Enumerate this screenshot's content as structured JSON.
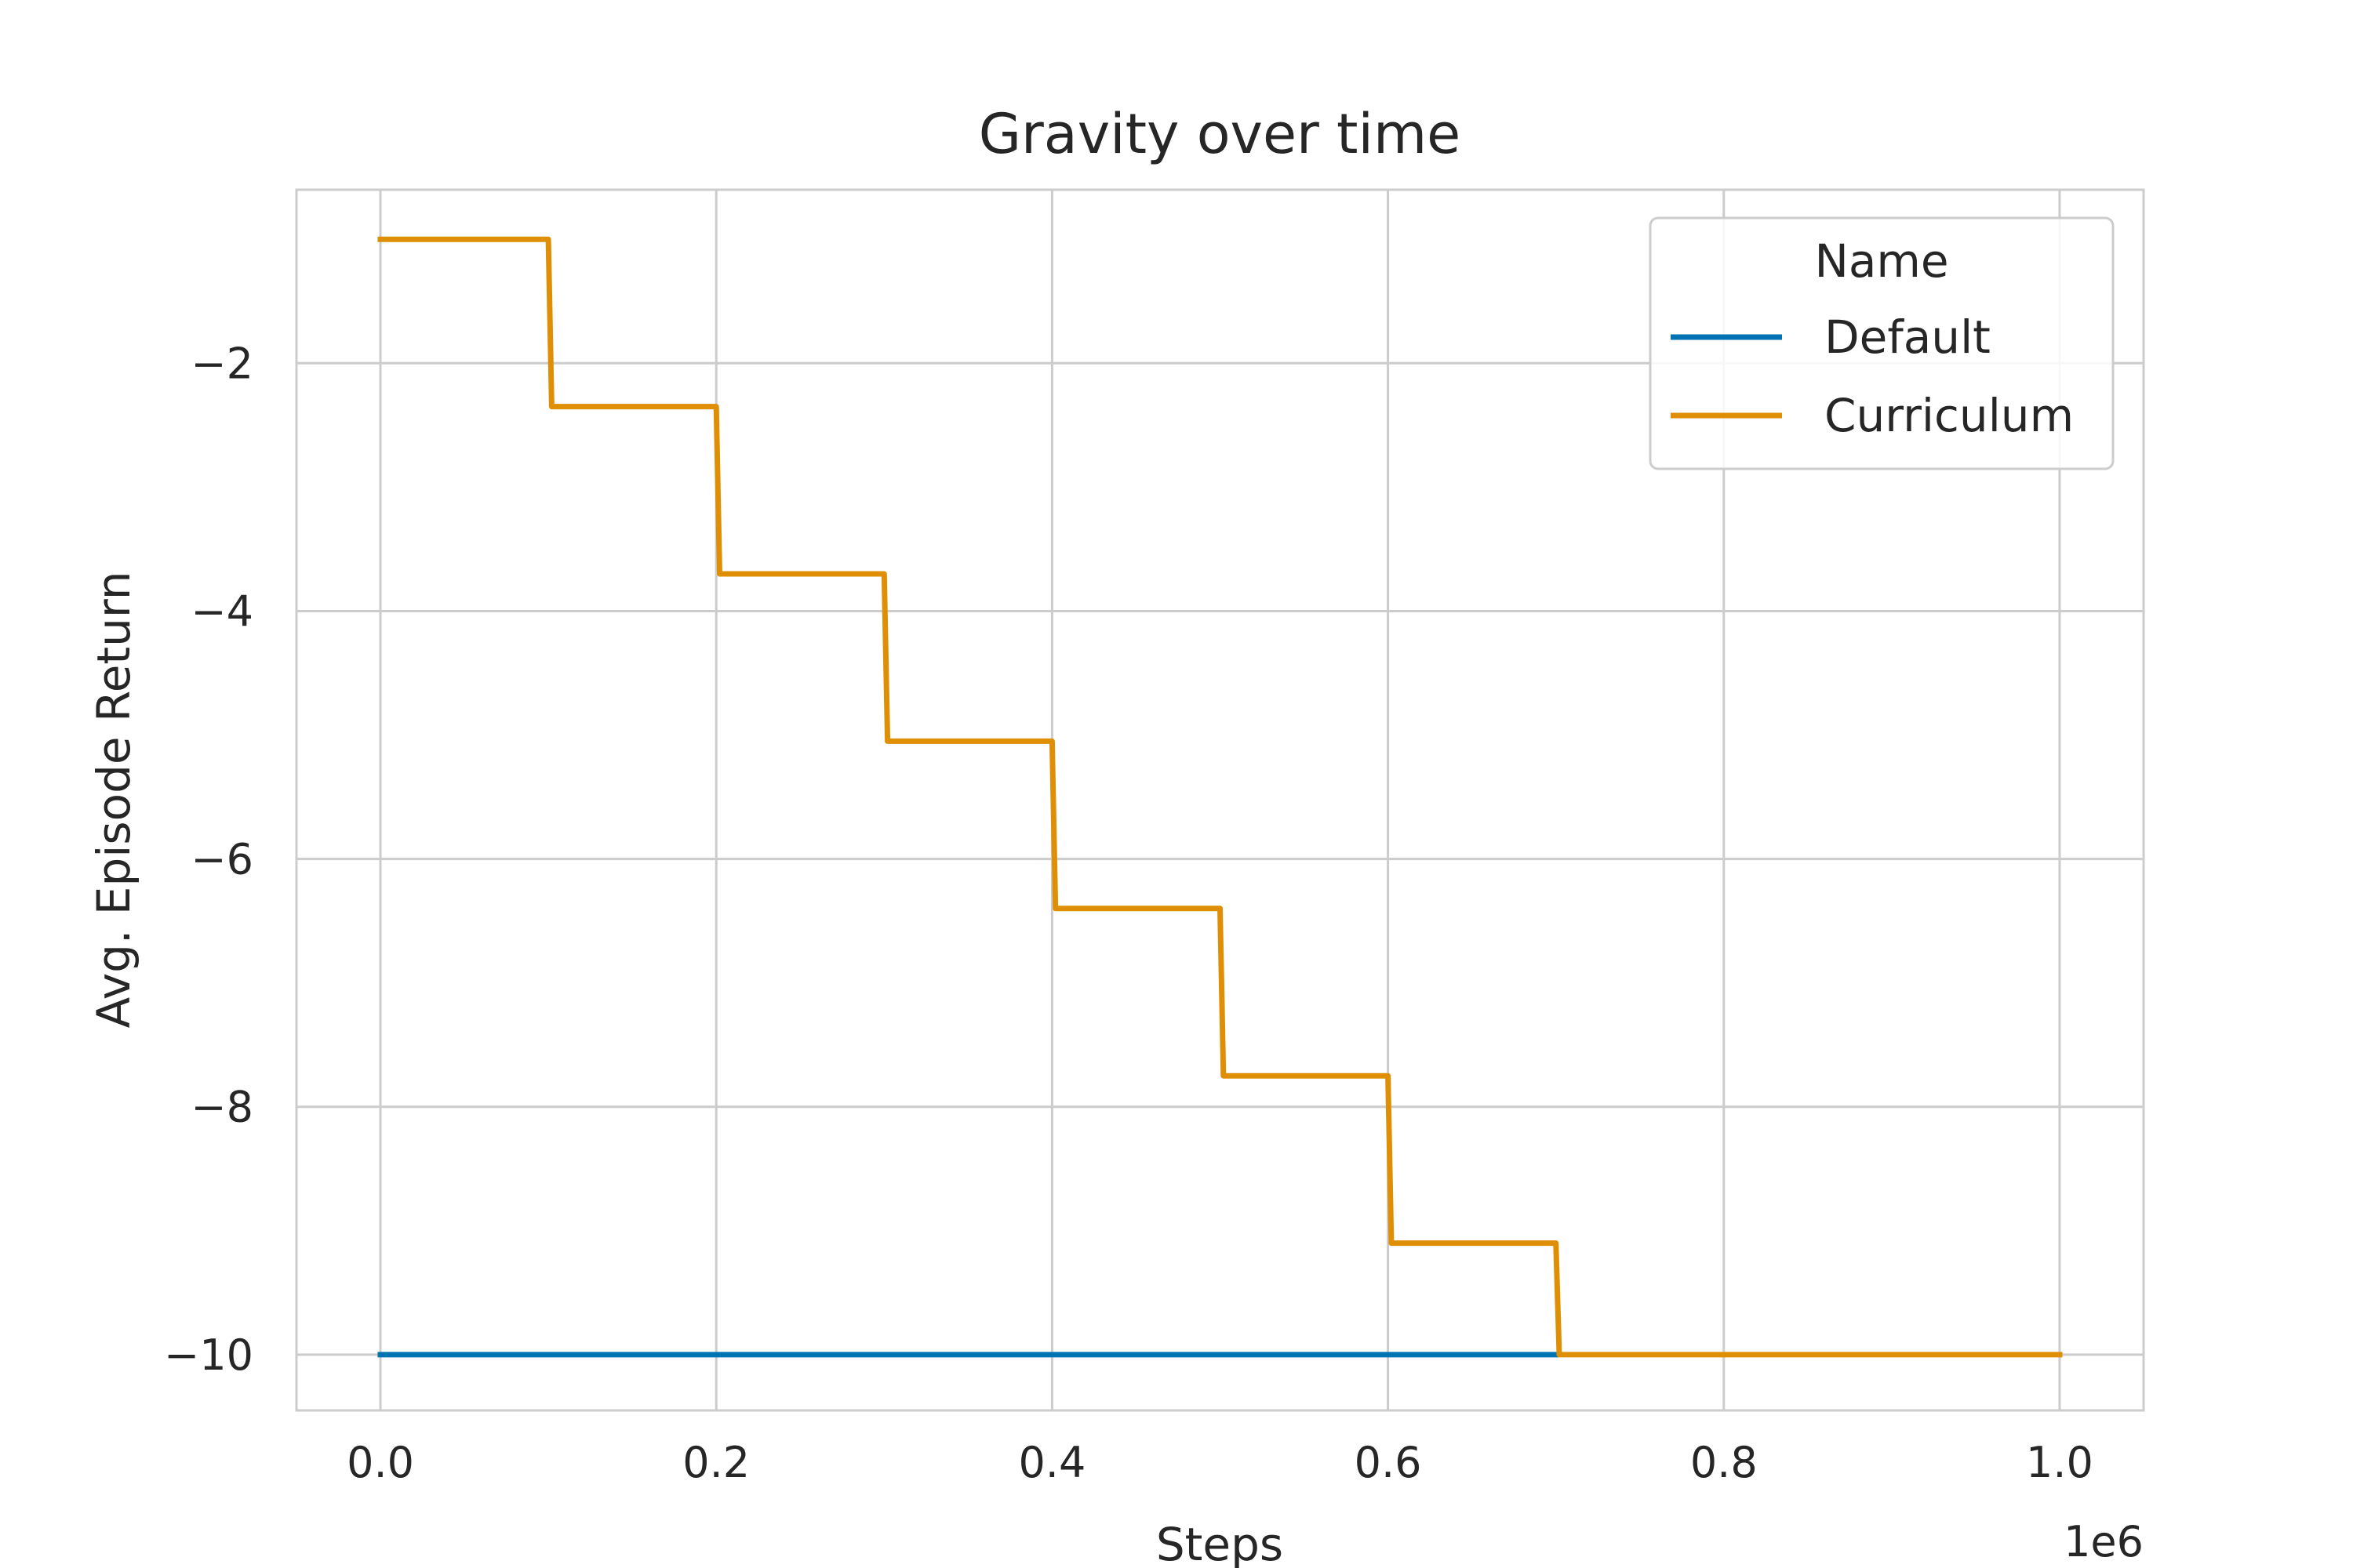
{
  "chart_data": {
    "type": "line",
    "title": "Gravity over time",
    "xlabel": "Steps",
    "ylabel": "Avg. Episode Return",
    "x_offset_label": "1e6",
    "xlim": [
      -0.05,
      1.05
    ],
    "ylim": [
      -10.45,
      -0.6
    ],
    "x_ticks": [
      0.0,
      0.2,
      0.4,
      0.6,
      0.8,
      1.0
    ],
    "x_tick_labels": [
      "0.0",
      "0.2",
      "0.4",
      "0.6",
      "0.8",
      "1.0"
    ],
    "y_ticks": [
      -2,
      -4,
      -6,
      -8,
      -10
    ],
    "y_tick_labels": [
      "−2",
      "−4",
      "−6",
      "−8",
      "−10"
    ],
    "grid": true,
    "legend": {
      "title": "Name",
      "position": "top-right"
    },
    "series": [
      {
        "name": "Default",
        "color": "#0173b2",
        "x": [
          0.0,
          0.7
        ],
        "y": [
          -10.0,
          -10.0
        ]
      },
      {
        "name": "Curriculum",
        "color": "#de8f05",
        "x": [
          0.0,
          0.1,
          0.102,
          0.2,
          0.202,
          0.3,
          0.302,
          0.4,
          0.402,
          0.5,
          0.502,
          0.6,
          0.602,
          0.7,
          0.702,
          1.0
        ],
        "y": [
          -1.0,
          -1.0,
          -2.35,
          -2.35,
          -3.7,
          -3.7,
          -5.05,
          -5.05,
          -6.4,
          -6.4,
          -7.75,
          -7.75,
          -9.1,
          -9.1,
          -10.0,
          -10.0
        ]
      }
    ]
  }
}
